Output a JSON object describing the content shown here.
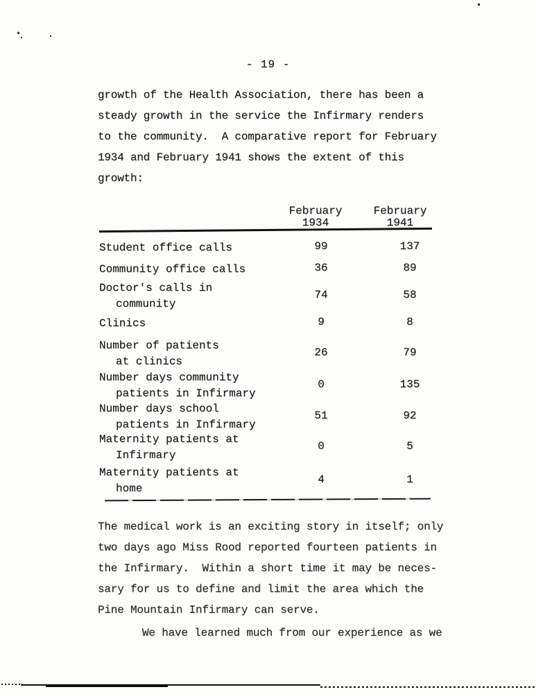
{
  "page_number": "- 19 -",
  "intro_paragraph": {
    "lines": [
      "growth of the Health Association, there has been a",
      "steady growth in the service the Infirmary renders",
      "to the community.  A comparative report for February",
      "1934 and February 1941 shows the extent of this",
      "growth:"
    ]
  },
  "table": {
    "columns": [
      {
        "label_line1": "February",
        "label_line2": "1934"
      },
      {
        "label_line1": "February",
        "label_line2": "1941"
      }
    ],
    "rows": [
      {
        "label_lines": [
          "Student office calls"
        ],
        "feb1934": "99",
        "feb1941": "137"
      },
      {
        "label_lines": [
          "Community office calls"
        ],
        "feb1934": "36",
        "feb1941": "89"
      },
      {
        "label_lines": [
          "Doctor's calls in",
          "community"
        ],
        "feb1934": "74",
        "feb1941": "58"
      },
      {
        "label_lines": [
          "Clinics"
        ],
        "feb1934": "9",
        "feb1941": "8"
      },
      {
        "label_lines": [
          "Number of patients",
          "at clinics"
        ],
        "feb1934": "26",
        "feb1941": "79"
      },
      {
        "label_lines": [
          "Number days community",
          "patients in Infirmary"
        ],
        "feb1934": "0",
        "feb1941": "135"
      },
      {
        "label_lines": [
          "Number days school",
          "patients in Infirmary"
        ],
        "feb1934": "51",
        "feb1941": "92"
      },
      {
        "label_lines": [
          "Maternity patients at",
          "Infirmary"
        ],
        "feb1934": "0",
        "feb1941": "5"
      },
      {
        "label_lines": [
          "Maternity patients at",
          "home"
        ],
        "feb1934": "4",
        "feb1941": "1"
      }
    ]
  },
  "body_paragraph": {
    "lines": [
      "The medical work is an exciting story in itself; only",
      "two days ago Miss Rood reported fourteen patients in",
      "the Infirmary.  Within a short time it may be neces-",
      "sary for us to define and limit the area which the",
      "Pine Mountain Infirmary can serve."
    ]
  },
  "closing_line": "We have learned much from our experience as we"
}
